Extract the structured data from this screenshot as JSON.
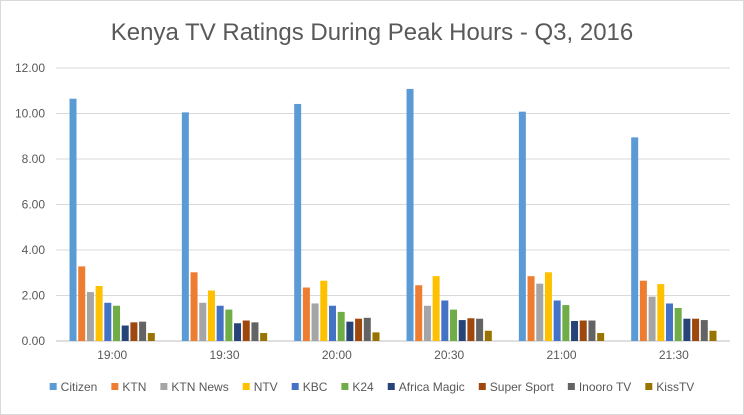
{
  "chart_data": {
    "type": "bar",
    "title": "Kenya TV Ratings During Peak Hours - Q3, 2016",
    "xlabel": "",
    "ylabel": "",
    "ylim": [
      0,
      12
    ],
    "y_ticks": [
      "0.00",
      "2.00",
      "4.00",
      "6.00",
      "8.00",
      "10.00",
      "12.00"
    ],
    "grid": "horizontal",
    "legend_position": "bottom",
    "categories": [
      "19:00",
      "19:30",
      "20:00",
      "20:30",
      "21:00",
      "21:30"
    ],
    "series": [
      {
        "name": "Citizen",
        "color": "#5B9BD5",
        "values": [
          10.65,
          10.05,
          10.42,
          11.08,
          10.08,
          8.95
        ]
      },
      {
        "name": "KTN",
        "color": "#ED7D31",
        "values": [
          3.28,
          3.02,
          2.35,
          2.45,
          2.85,
          2.65
        ]
      },
      {
        "name": "KTN News",
        "color": "#A5A5A5",
        "values": [
          2.15,
          1.68,
          1.65,
          1.55,
          2.52,
          1.95
        ]
      },
      {
        "name": "NTV",
        "color": "#FFC000",
        "values": [
          2.42,
          2.22,
          2.65,
          2.85,
          3.02,
          2.5
        ]
      },
      {
        "name": "KBC",
        "color": "#4472C4",
        "values": [
          1.68,
          1.55,
          1.55,
          1.78,
          1.78,
          1.65
        ]
      },
      {
        "name": "K24",
        "color": "#70AD47",
        "values": [
          1.55,
          1.38,
          1.28,
          1.38,
          1.58,
          1.45
        ]
      },
      {
        "name": "Africa Magic",
        "color": "#264478",
        "values": [
          0.68,
          0.78,
          0.85,
          0.92,
          0.88,
          0.98
        ]
      },
      {
        "name": "Super Sport",
        "color": "#9E480E",
        "values": [
          0.82,
          0.9,
          0.98,
          1.0,
          0.9,
          0.98
        ]
      },
      {
        "name": "Inooro TV",
        "color": "#636363",
        "values": [
          0.85,
          0.82,
          1.02,
          0.98,
          0.9,
          0.92
        ]
      },
      {
        "name": "KissTV",
        "color": "#997300",
        "values": [
          0.35,
          0.35,
          0.38,
          0.45,
          0.35,
          0.45
        ]
      }
    ]
  }
}
